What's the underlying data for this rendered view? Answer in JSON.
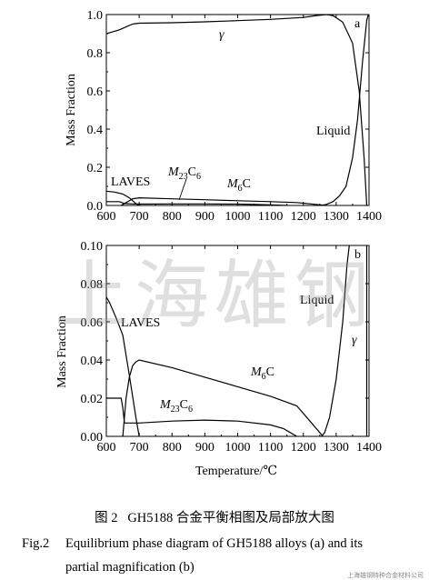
{
  "chart_data": [
    {
      "type": "line",
      "panel_letter": "a",
      "xlim": [
        600,
        1400
      ],
      "ylim": [
        0,
        1.0
      ],
      "xticks": [
        "600",
        "700",
        "800",
        "900",
        "1000",
        "1100",
        "1200",
        "1300",
        "1400"
      ],
      "yticks": [
        "0.0",
        "0.2",
        "0.4",
        "0.6",
        "0.8",
        "1.0"
      ],
      "xlabel": "",
      "ylabel": "Mass Fraction",
      "series": [
        {
          "name": "γ",
          "x": [
            600,
            620,
            640,
            660,
            680,
            700,
            800,
            900,
            1000,
            1100,
            1200,
            1240,
            1270,
            1290,
            1320,
            1350,
            1370,
            1385,
            1393
          ],
          "y": [
            0.9,
            0.91,
            0.92,
            0.935,
            0.95,
            0.955,
            0.957,
            0.962,
            0.968,
            0.975,
            0.985,
            0.995,
            1.0,
            0.995,
            0.96,
            0.85,
            0.6,
            0.25,
            0.0
          ]
        },
        {
          "name": "Liquid",
          "x": [
            1255,
            1270,
            1290,
            1310,
            1330,
            1350,
            1365,
            1380,
            1393,
            1398
          ],
          "y": [
            0.0,
            0.005,
            0.02,
            0.05,
            0.1,
            0.25,
            0.45,
            0.75,
            0.97,
            1.0
          ]
        },
        {
          "name": "LAVES",
          "x": [
            600,
            625,
            650,
            670,
            690,
            700
          ],
          "y": [
            0.075,
            0.07,
            0.06,
            0.04,
            0.01,
            0.0
          ]
        },
        {
          "name": "M23C6",
          "x": [
            600,
            640,
            655,
            680,
            700,
            800,
            900,
            1000,
            1050,
            1100,
            1150
          ],
          "y": [
            0.02,
            0.02,
            0.01,
            0.008,
            0.007,
            0.008,
            0.008,
            0.007,
            0.005,
            0.003,
            0.0
          ]
        },
        {
          "name": "M6C",
          "x": [
            645,
            680,
            700,
            800,
            900,
            1000,
            1100,
            1180,
            1270
          ],
          "y": [
            0.0,
            0.035,
            0.04,
            0.035,
            0.03,
            0.025,
            0.02,
            0.015,
            0.0
          ]
        }
      ],
      "annotations": [
        "γ",
        "Liquid",
        "LAVES",
        "M23C6",
        "M6C"
      ]
    },
    {
      "type": "line",
      "panel_letter": "b",
      "xlim": [
        600,
        1400
      ],
      "ylim": [
        0,
        0.1
      ],
      "xticks": [
        "600",
        "700",
        "800",
        "900",
        "1000",
        "1100",
        "1200",
        "1300",
        "1400"
      ],
      "yticks": [
        "0.00",
        "0.02",
        "0.04",
        "0.06",
        "0.08",
        "0.10"
      ],
      "xlabel": "Temperature/℃",
      "ylabel": "Mass Fraction",
      "series": [
        {
          "name": "LAVES",
          "x": [
            600,
            610,
            630,
            650,
            670,
            690,
            700
          ],
          "y": [
            0.073,
            0.07,
            0.062,
            0.053,
            0.032,
            0.01,
            0.0
          ]
        },
        {
          "name": "M23C6",
          "x": [
            600,
            645,
            650,
            655,
            700,
            800,
            900,
            1000,
            1100,
            1140,
            1180
          ],
          "y": [
            0.02,
            0.02,
            0.015,
            0.007,
            0.007,
            0.008,
            0.0085,
            0.008,
            0.006,
            0.004,
            0.0
          ]
        },
        {
          "name": "M6C",
          "x": [
            650,
            660,
            670,
            680,
            690,
            700,
            800,
            900,
            1000,
            1100,
            1180,
            1220,
            1260
          ],
          "y": [
            0.0,
            0.02,
            0.031,
            0.037,
            0.039,
            0.04,
            0.036,
            0.031,
            0.026,
            0.021,
            0.016,
            0.008,
            0.0
          ]
        },
        {
          "name": "Liquid",
          "x": [
            1255,
            1265,
            1280,
            1300,
            1320,
            1333,
            1340
          ],
          "y": [
            0.0,
            0.002,
            0.01,
            0.03,
            0.06,
            0.09,
            0.1
          ]
        },
        {
          "name": "γ",
          "x": [
            1393,
            1393
          ],
          "y": [
            0.1,
            0.0
          ]
        }
      ],
      "annotations": [
        "LAVES",
        "M23C6",
        "M6C",
        "Liquid",
        "γ"
      ]
    }
  ],
  "watermark": "上海雄钢",
  "caption": {
    "cn_tag": "图 2",
    "cn_text": "GH5188 合金平衡相图及局部放大图",
    "en_tag": "Fig.2",
    "en_line1": "Equilibrium phase diagram of GH5188 alloys (a) and its",
    "en_line2": "partial magnification (b)"
  },
  "credit": "上海雄钢特种合金材料公司"
}
